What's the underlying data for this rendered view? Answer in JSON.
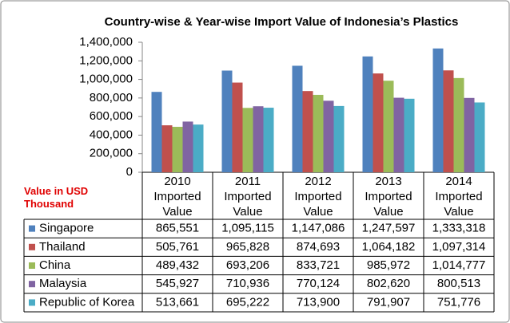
{
  "chart_data": {
    "type": "bar",
    "title": "Country-wise & Year-wise Import Value of Indonesia’s Plastics",
    "annotation": "Value in USD Thousand",
    "categories": [
      "2010 Imported Value",
      "2011 Imported Value",
      "2012 Imported Value",
      "2013 Imported Value",
      "2014 Imported Value"
    ],
    "series": [
      {
        "name": "Singapore",
        "color": "#4f81bd",
        "values": [
          865551,
          1095115,
          1147086,
          1247597,
          1333318
        ],
        "value_labels": [
          "865,551",
          "1,095,115",
          "1,147,086",
          "1,247,597",
          "1,333,318"
        ]
      },
      {
        "name": "Thailand",
        "color": "#c0504d",
        "values": [
          505761,
          965828,
          874693,
          1064182,
          1097314
        ],
        "value_labels": [
          "505,761",
          "965,828",
          "874,693",
          "1,064,182",
          "1,097,314"
        ]
      },
      {
        "name": "China",
        "color": "#9bbb59",
        "values": [
          489432,
          693206,
          833721,
          985972,
          1014777
        ],
        "value_labels": [
          "489,432",
          "693,206",
          "833,721",
          "985,972",
          "1,014,777"
        ]
      },
      {
        "name": "Malaysia",
        "color": "#8064a2",
        "values": [
          545927,
          710936,
          770124,
          802620,
          800513
        ],
        "value_labels": [
          "545,927",
          "710,936",
          "770,124",
          "802,620",
          "800,513"
        ]
      },
      {
        "name": "Republic of Korea",
        "color": "#4bacc6",
        "values": [
          513661,
          695222,
          713900,
          791907,
          751776
        ],
        "value_labels": [
          "513,661",
          "695,222",
          "713,900",
          "791,907",
          "751,776"
        ]
      }
    ],
    "ylim": [
      0,
      1400000
    ],
    "yticks": [
      0,
      {
        "value": 200000,
        "label": "200,000"
      },
      {
        "value": 400000,
        "label": "400,000"
      },
      {
        "value": 600000,
        "label": "600,000"
      },
      {
        "value": 800000,
        "label": "800,000"
      },
      {
        "value": 1000000,
        "label": "1,000,000"
      },
      {
        "value": 1200000,
        "label": "1,200,000"
      },
      {
        "value": 1400000,
        "label": "1,400,000"
      }
    ],
    "grid": false
  }
}
